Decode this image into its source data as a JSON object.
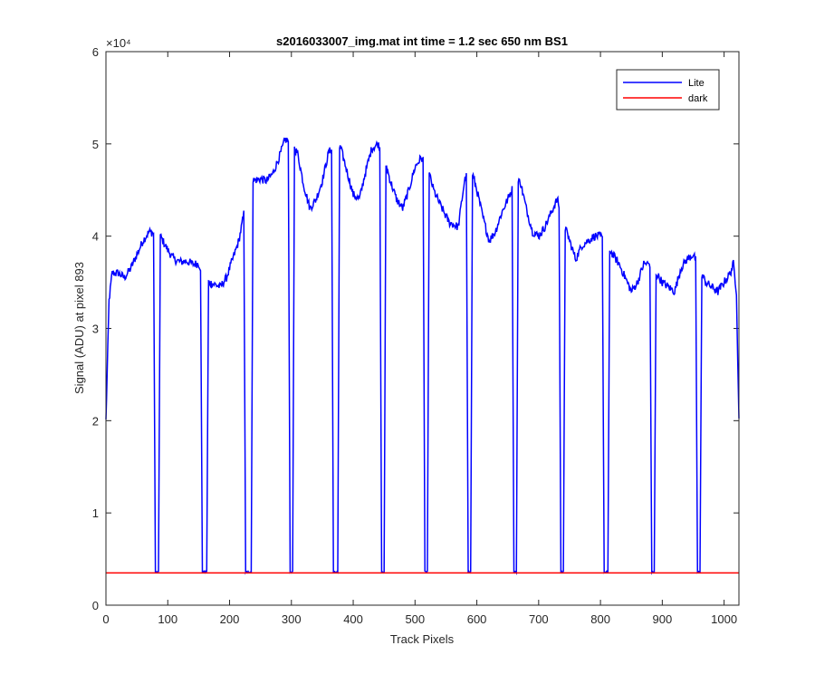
{
  "chart_data": {
    "type": "line",
    "title": "s2016033007_img.mat int time = 1.2 sec  650 nm BS1",
    "xlabel": "Track Pixels",
    "ylabel": "Signal (ADU) at pixel 893",
    "xlim": [
      0,
      1024
    ],
    "ylim": [
      0,
      60000
    ],
    "x_ticks": [
      0,
      100,
      200,
      300,
      400,
      500,
      600,
      700,
      800,
      900,
      1000
    ],
    "y_ticks": [
      0,
      10000,
      20000,
      30000,
      40000,
      50000,
      60000
    ],
    "y_tick_labels": [
      "0",
      "1",
      "2",
      "3",
      "4",
      "5",
      "6"
    ],
    "y_exponent_label": "×10⁴",
    "grid": false,
    "legend_position": "top-right",
    "series": [
      {
        "name": "Lite",
        "color": "#0000ff",
        "envelope_points": [
          [
            0,
            20000
          ],
          [
            5,
            33000
          ],
          [
            10,
            36000
          ],
          [
            20,
            36000
          ],
          [
            30,
            35500
          ],
          [
            40,
            36500
          ],
          [
            50,
            38000
          ],
          [
            60,
            39500
          ],
          [
            70,
            40500
          ],
          [
            88,
            40000
          ],
          [
            100,
            38500
          ],
          [
            110,
            37500
          ],
          [
            120,
            37200
          ],
          [
            130,
            37300
          ],
          [
            140,
            37000
          ],
          [
            150,
            37000
          ],
          [
            165,
            35000
          ],
          [
            175,
            34800
          ],
          [
            185,
            34500
          ],
          [
            195,
            35500
          ],
          [
            205,
            37500
          ],
          [
            215,
            39500
          ],
          [
            222,
            42000
          ],
          [
            228,
            44500
          ],
          [
            235,
            46000
          ],
          [
            250,
            46200
          ],
          [
            260,
            46000
          ],
          [
            270,
            46800
          ],
          [
            280,
            48500
          ],
          [
            290,
            50500
          ],
          [
            300,
            50000
          ],
          [
            310,
            49000
          ],
          [
            320,
            45500
          ],
          [
            330,
            43000
          ],
          [
            340,
            44000
          ],
          [
            350,
            46000
          ],
          [
            360,
            49000
          ],
          [
            370,
            50000
          ],
          [
            380,
            49500
          ],
          [
            390,
            47000
          ],
          [
            400,
            44500
          ],
          [
            410,
            44000
          ],
          [
            420,
            47000
          ],
          [
            430,
            49500
          ],
          [
            440,
            50000
          ],
          [
            450,
            48500
          ],
          [
            460,
            46000
          ],
          [
            470,
            44000
          ],
          [
            480,
            43000
          ],
          [
            490,
            45000
          ],
          [
            500,
            47500
          ],
          [
            510,
            48500
          ],
          [
            520,
            47500
          ],
          [
            530,
            45000
          ],
          [
            540,
            43500
          ],
          [
            555,
            41500
          ],
          [
            570,
            41000
          ],
          [
            580,
            46000
          ],
          [
            590,
            47500
          ],
          [
            600,
            45000
          ],
          [
            610,
            42000
          ],
          [
            620,
            39500
          ],
          [
            630,
            40500
          ],
          [
            640,
            42500
          ],
          [
            650,
            44000
          ],
          [
            660,
            45500
          ],
          [
            670,
            46000
          ],
          [
            680,
            43000
          ],
          [
            690,
            40500
          ],
          [
            700,
            40000
          ],
          [
            710,
            41000
          ],
          [
            720,
            42500
          ],
          [
            730,
            44000
          ],
          [
            740,
            41500
          ],
          [
            750,
            39500
          ],
          [
            760,
            37500
          ],
          [
            770,
            39000
          ],
          [
            780,
            39500
          ],
          [
            790,
            40000
          ],
          [
            800,
            40000
          ],
          [
            810,
            39000
          ],
          [
            820,
            38000
          ],
          [
            830,
            37000
          ],
          [
            840,
            35500
          ],
          [
            850,
            34000
          ],
          [
            860,
            35000
          ],
          [
            870,
            37000
          ],
          [
            880,
            37000
          ],
          [
            890,
            36000
          ],
          [
            900,
            35000
          ],
          [
            910,
            34500
          ],
          [
            920,
            34000
          ],
          [
            930,
            36500
          ],
          [
            940,
            37500
          ],
          [
            950,
            38000
          ],
          [
            960,
            36500
          ],
          [
            970,
            35000
          ],
          [
            980,
            34500
          ],
          [
            990,
            34000
          ],
          [
            1000,
            35000
          ],
          [
            1010,
            36000
          ],
          [
            1015,
            37000
          ],
          [
            1020,
            34000
          ],
          [
            1024,
            20000
          ]
        ],
        "dips": [
          [
            77,
            88
          ],
          [
            153,
            166
          ],
          [
            223,
            238
          ],
          [
            295,
            305
          ],
          [
            365,
            378
          ],
          [
            443,
            453
          ],
          [
            513,
            523
          ],
          [
            583,
            593
          ],
          [
            657,
            667
          ],
          [
            733,
            743
          ],
          [
            803,
            815
          ],
          [
            880,
            890
          ],
          [
            954,
            964
          ]
        ],
        "dip_level": 3600
      },
      {
        "name": "dark",
        "color": "#ff0000",
        "points": [
          [
            0,
            3500
          ],
          [
            1024,
            3500
          ]
        ]
      }
    ]
  }
}
